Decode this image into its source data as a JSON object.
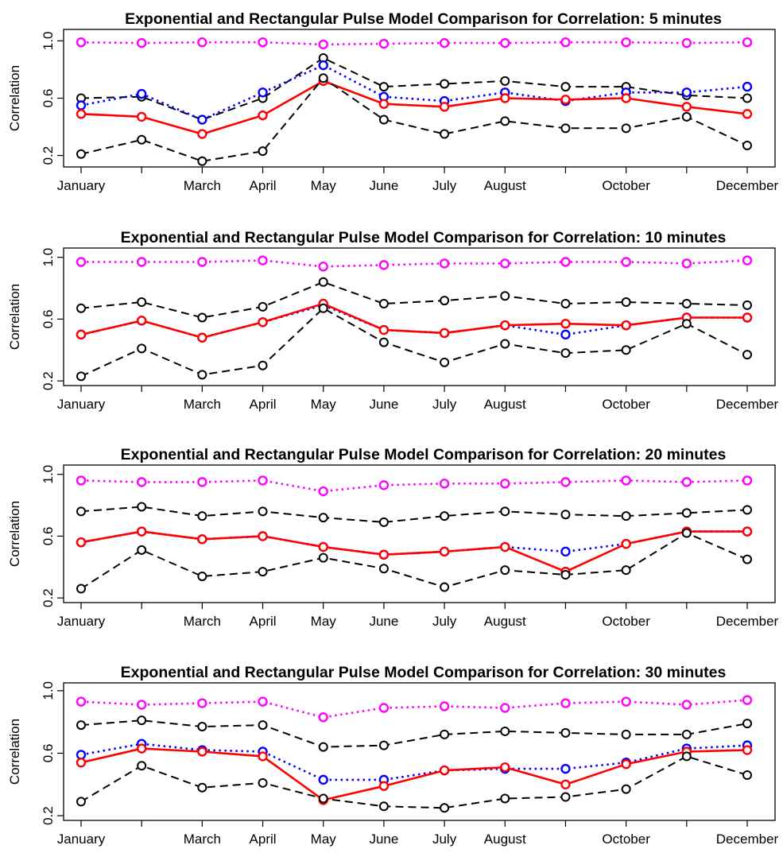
{
  "chart_data": [
    {
      "type": "line",
      "title": "Exponential and Rectangular Pulse Model Comparison for Correlation: 5 minutes",
      "xlabel": "",
      "ylabel": "Correlation",
      "x_tick_labels": [
        "January",
        "",
        "March",
        "April",
        "May",
        "June",
        "July",
        "August",
        "",
        "October",
        "",
        "December"
      ],
      "y_ticks": [
        0.2,
        0.6,
        1.0
      ],
      "ylim": [
        0.12,
        1.08
      ],
      "grid": false,
      "series": [
        {
          "color": "#ff00ff",
          "linestyle": "dotted",
          "values": [
            0.99,
            0.985,
            0.99,
            0.99,
            0.975,
            0.98,
            0.985,
            0.985,
            0.99,
            0.99,
            0.985,
            0.99
          ]
        },
        {
          "color": "#000000",
          "linestyle": "dashed",
          "values": [
            0.6,
            0.61,
            0.45,
            0.6,
            0.88,
            0.68,
            0.7,
            0.72,
            0.68,
            0.68,
            0.62,
            0.6
          ]
        },
        {
          "color": "#0000ff",
          "linestyle": "dotted",
          "values": [
            0.55,
            0.63,
            0.45,
            0.64,
            0.83,
            0.61,
            0.58,
            0.64,
            0.58,
            0.64,
            0.64,
            0.68
          ]
        },
        {
          "color": "#ff0000",
          "linestyle": "solid",
          "values": [
            0.49,
            0.47,
            0.35,
            0.48,
            0.72,
            0.56,
            0.54,
            0.6,
            0.59,
            0.6,
            0.54,
            0.49
          ]
        },
        {
          "color": "#000000",
          "linestyle": "dashed",
          "values": [
            0.21,
            0.31,
            0.16,
            0.23,
            0.74,
            0.45,
            0.35,
            0.44,
            0.39,
            0.39,
            0.47,
            0.27
          ]
        }
      ]
    },
    {
      "type": "line",
      "title": "Exponential and Rectangular Pulse Model Comparison for Correlation: 10 minutes",
      "xlabel": "",
      "ylabel": "Correlation",
      "x_tick_labels": [
        "January",
        "",
        "March",
        "April",
        "May",
        "June",
        "July",
        "August",
        "",
        "October",
        "",
        "December"
      ],
      "y_ticks": [
        0.2,
        0.6,
        1.0
      ],
      "ylim": [
        0.17,
        1.06
      ],
      "grid": false,
      "series": [
        {
          "color": "#ff00ff",
          "linestyle": "dotted",
          "values": [
            0.97,
            0.97,
            0.97,
            0.98,
            0.94,
            0.95,
            0.96,
            0.96,
            0.97,
            0.97,
            0.96,
            0.98
          ]
        },
        {
          "color": "#000000",
          "linestyle": "dashed",
          "values": [
            0.67,
            0.71,
            0.61,
            0.68,
            0.84,
            0.7,
            0.72,
            0.75,
            0.7,
            0.71,
            0.7,
            0.69
          ]
        },
        {
          "color": "#0000ff",
          "linestyle": "dotted",
          "values": [
            0.5,
            0.59,
            0.48,
            0.58,
            0.69,
            0.53,
            0.51,
            0.56,
            0.5,
            0.56,
            0.61,
            0.61
          ]
        },
        {
          "color": "#ff0000",
          "linestyle": "solid",
          "values": [
            0.5,
            0.59,
            0.48,
            0.58,
            0.7,
            0.53,
            0.51,
            0.56,
            0.57,
            0.56,
            0.61,
            0.61
          ]
        },
        {
          "color": "#000000",
          "linestyle": "dashed",
          "values": [
            0.23,
            0.41,
            0.24,
            0.3,
            0.67,
            0.45,
            0.32,
            0.44,
            0.38,
            0.4,
            0.57,
            0.37
          ]
        }
      ]
    },
    {
      "type": "line",
      "title": "Exponential and Rectangular Pulse Model Comparison for Correlation: 20 minutes",
      "xlabel": "",
      "ylabel": "Correlation",
      "x_tick_labels": [
        "January",
        "",
        "March",
        "April",
        "May",
        "June",
        "July",
        "August",
        "",
        "October",
        "",
        "December"
      ],
      "y_ticks": [
        0.2,
        0.6,
        1.0
      ],
      "ylim": [
        0.17,
        1.06
      ],
      "grid": false,
      "series": [
        {
          "color": "#ff00ff",
          "linestyle": "dotted",
          "values": [
            0.96,
            0.95,
            0.95,
            0.96,
            0.89,
            0.93,
            0.94,
            0.94,
            0.95,
            0.96,
            0.95,
            0.96
          ]
        },
        {
          "color": "#000000",
          "linestyle": "dashed",
          "values": [
            0.76,
            0.79,
            0.73,
            0.76,
            0.72,
            0.69,
            0.73,
            0.76,
            0.74,
            0.73,
            0.75,
            0.77
          ]
        },
        {
          "color": "#0000ff",
          "linestyle": "dotted",
          "values": [
            0.56,
            0.63,
            0.58,
            0.6,
            0.53,
            0.48,
            0.5,
            0.53,
            0.5,
            0.55,
            0.63,
            0.63
          ]
        },
        {
          "color": "#ff0000",
          "linestyle": "solid",
          "values": [
            0.56,
            0.63,
            0.58,
            0.6,
            0.53,
            0.48,
            0.5,
            0.53,
            0.37,
            0.55,
            0.63,
            0.63
          ]
        },
        {
          "color": "#000000",
          "linestyle": "dashed",
          "values": [
            0.26,
            0.51,
            0.34,
            0.37,
            0.46,
            0.39,
            0.27,
            0.38,
            0.35,
            0.38,
            0.62,
            0.45
          ]
        }
      ]
    },
    {
      "type": "line",
      "title": "Exponential and Rectangular Pulse Model Comparison for Correlation: 30 minutes",
      "xlabel": "",
      "ylabel": "Correlation",
      "x_tick_labels": [
        "January",
        "",
        "March",
        "April",
        "May",
        "June",
        "July",
        "August",
        "",
        "October",
        "",
        "December"
      ],
      "y_ticks": [
        0.2,
        0.6,
        1.0
      ],
      "ylim": [
        0.17,
        1.05
      ],
      "grid": false,
      "series": [
        {
          "color": "#ff00ff",
          "linestyle": "dotted",
          "values": [
            0.93,
            0.91,
            0.92,
            0.93,
            0.83,
            0.89,
            0.9,
            0.89,
            0.92,
            0.93,
            0.91,
            0.94
          ]
        },
        {
          "color": "#000000",
          "linestyle": "dashed",
          "values": [
            0.78,
            0.81,
            0.77,
            0.78,
            0.64,
            0.65,
            0.72,
            0.74,
            0.73,
            0.72,
            0.72,
            0.79
          ]
        },
        {
          "color": "#0000ff",
          "linestyle": "dotted",
          "values": [
            0.59,
            0.66,
            0.62,
            0.61,
            0.43,
            0.43,
            0.49,
            0.5,
            0.5,
            0.54,
            0.63,
            0.65
          ]
        },
        {
          "color": "#ff0000",
          "linestyle": "solid",
          "values": [
            0.54,
            0.63,
            0.61,
            0.58,
            0.3,
            0.39,
            0.49,
            0.51,
            0.4,
            0.53,
            0.61,
            0.62
          ]
        },
        {
          "color": "#000000",
          "linestyle": "dashed",
          "values": [
            0.29,
            0.52,
            0.38,
            0.41,
            0.31,
            0.26,
            0.25,
            0.31,
            0.32,
            0.37,
            0.58,
            0.46
          ]
        }
      ]
    }
  ]
}
